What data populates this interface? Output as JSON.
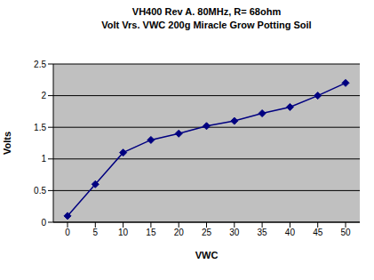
{
  "chart_data": {
    "type": "line",
    "title": "VH400 Rev A. 80MHz, R= 68ohm",
    "subtitle": "Volt Vrs. VWC 200g Miracle Grow Potting Soil",
    "x_label": "VWC",
    "y_label": "Volts",
    "categories": [
      "0",
      "5",
      "10",
      "15",
      "20",
      "25",
      "30",
      "35",
      "40",
      "45",
      "50"
    ],
    "values": [
      0.1,
      0.6,
      1.1,
      1.3,
      1.4,
      1.52,
      1.6,
      1.72,
      1.82,
      2.0,
      2.2
    ],
    "color": "#000080",
    "marker": "diamond",
    "line_style": "solid",
    "ylim": [
      0,
      2.5
    ],
    "yticks": [
      0,
      0.5,
      1,
      1.5,
      2,
      2.5
    ],
    "grid": true
  }
}
